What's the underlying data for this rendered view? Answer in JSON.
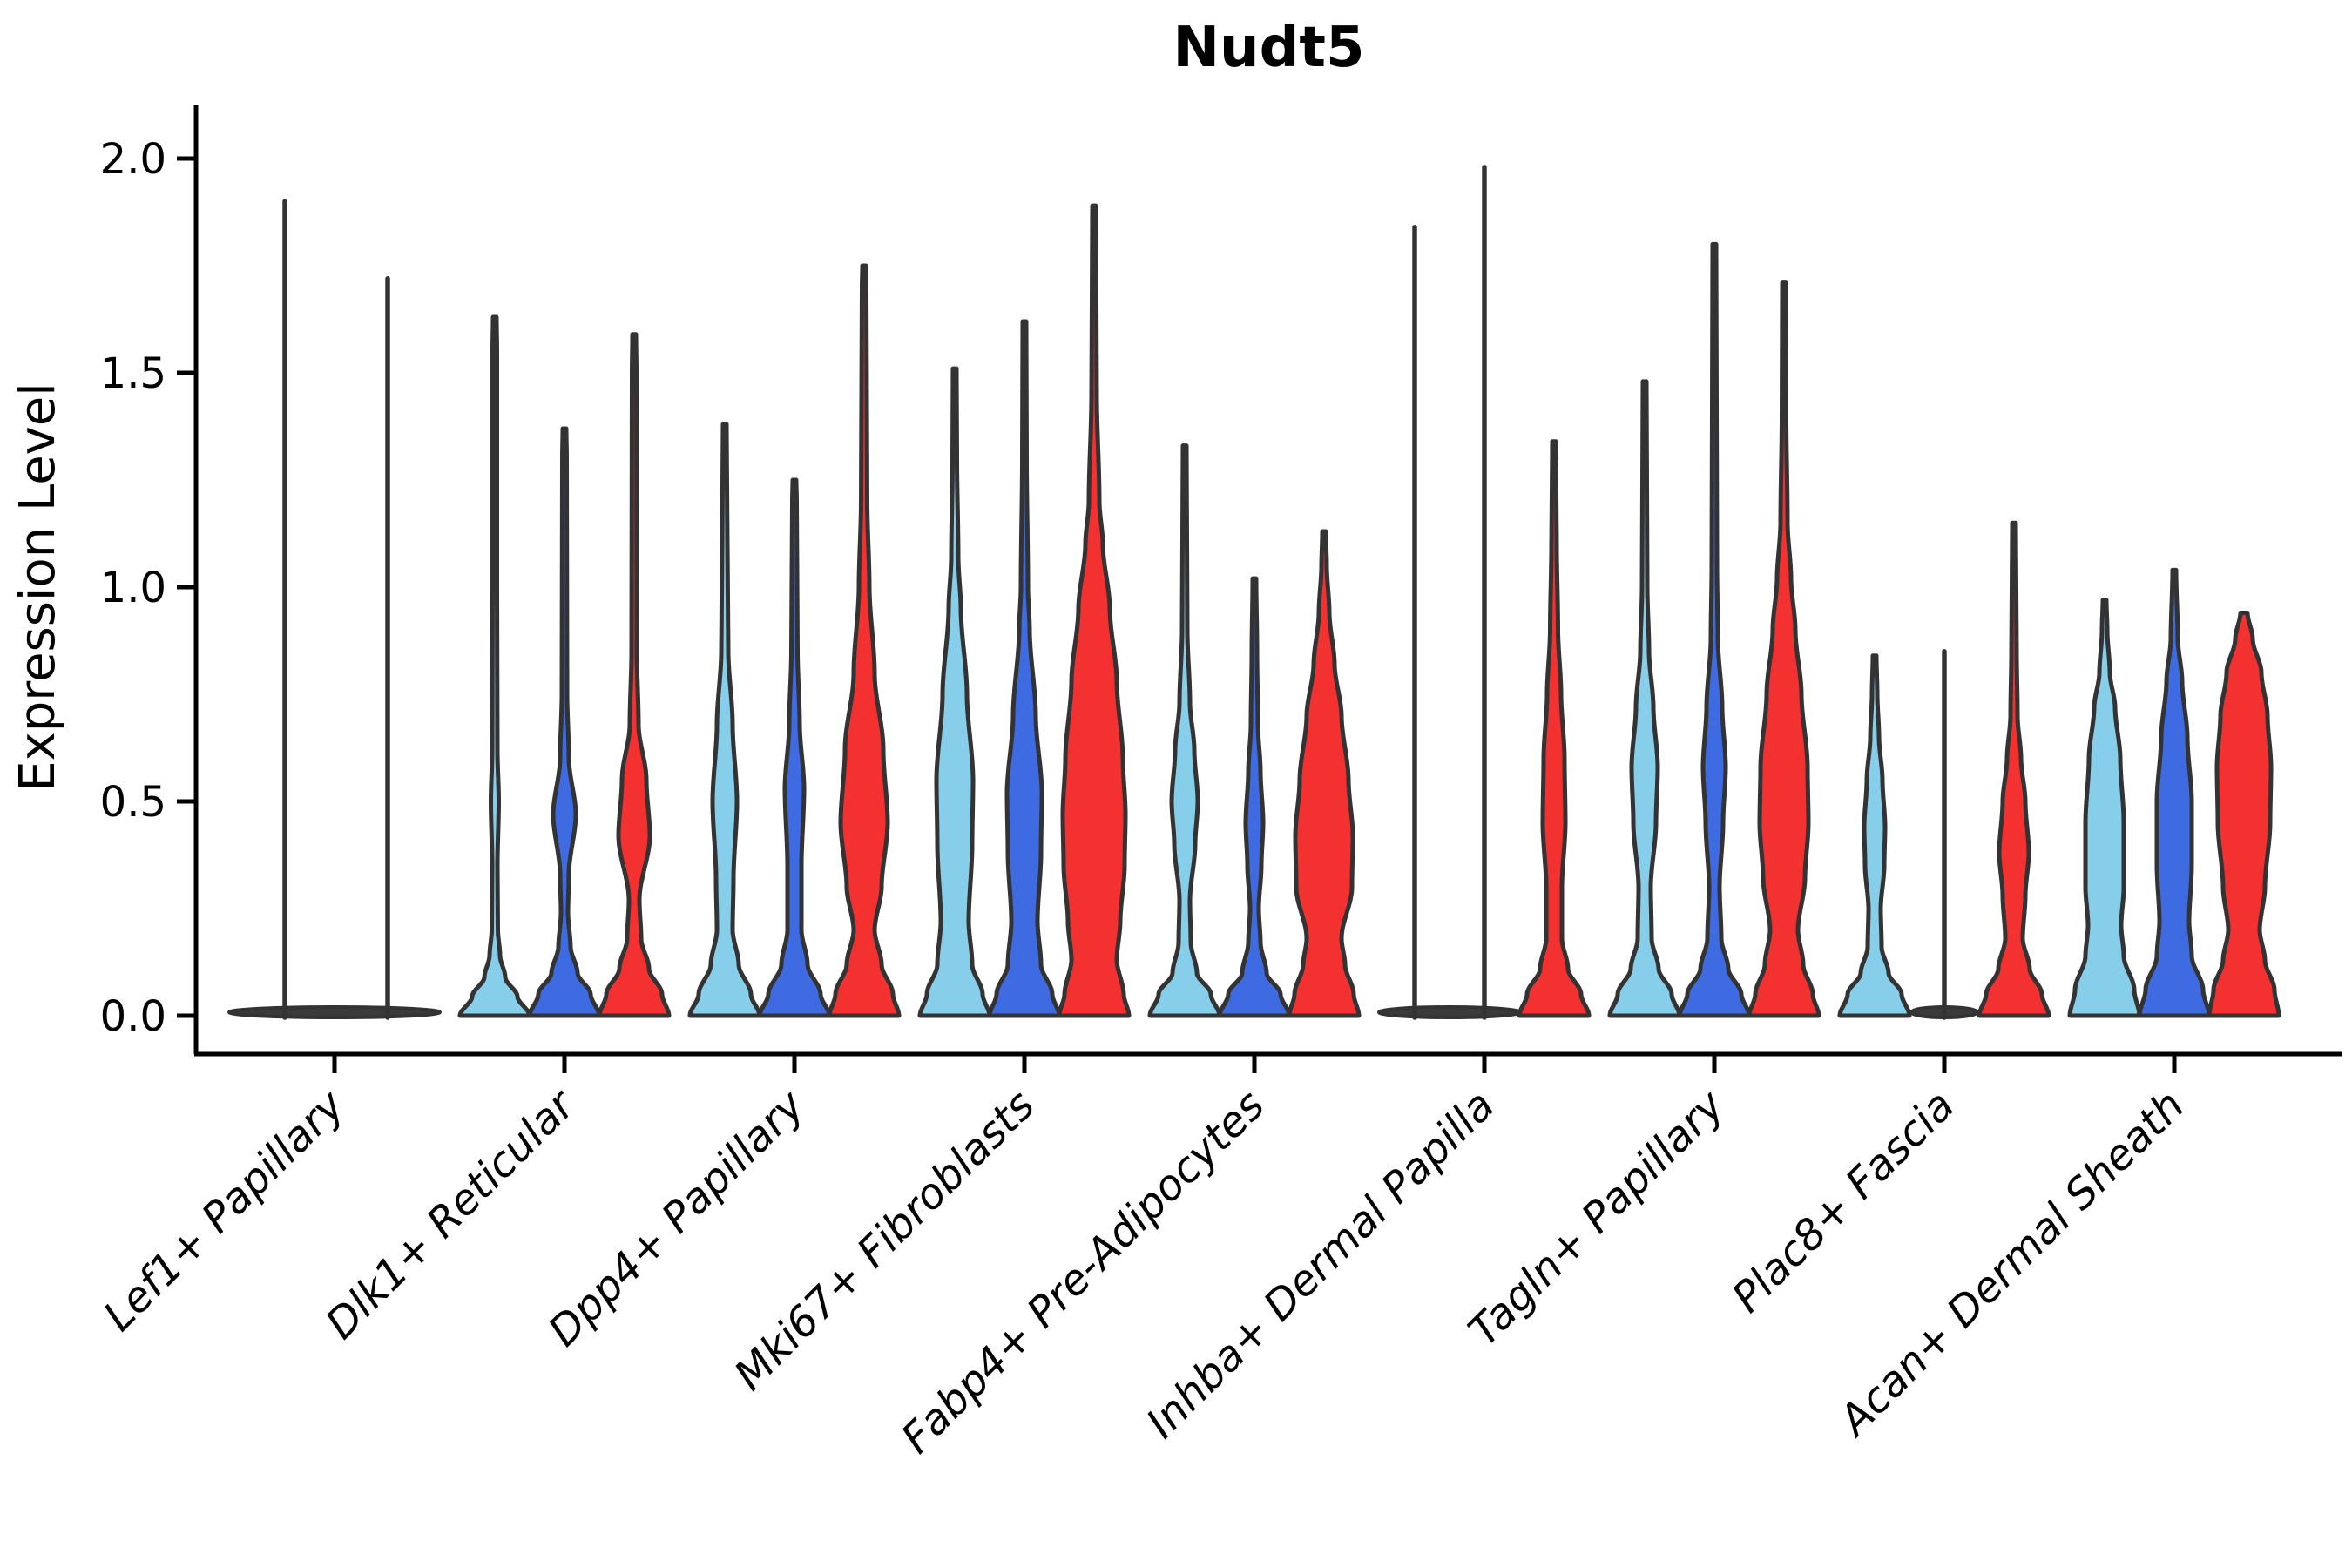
{
  "chart_data": {
    "type": "violin",
    "title": "Nudt5",
    "ylabel": "Expression Level",
    "xlabel": "",
    "ylim": [
      0.0,
      2.05
    ],
    "grid": false,
    "legend": "none",
    "yticks": [
      0.0,
      0.5,
      1.0,
      1.5,
      2.0
    ],
    "ytick_labels": [
      "0.0",
      "0.5",
      "1.0",
      "1.5",
      "2.0"
    ],
    "categories": [
      "Lef1+ Papillary",
      "Dlk1+ Reticular",
      "Dpp4+ Papillary",
      "Mki67+ Fibroblasts",
      "Fabp4+ Pre-Adipocytes",
      "Inhba+ Dermal Papilla",
      "Tagln+ Papillary",
      "Plac8+ Fascia",
      "Acan+ Dermal Sheath"
    ],
    "series_colors": {
      "lightblue": "#87CEEB",
      "blue": "#3E6BE1",
      "red": "#F43131"
    },
    "outline_color": "#333333",
    "axis_color": "#000000",
    "violins": [
      {
        "category": 0,
        "slot": 0,
        "color": "lightblue",
        "kind": "line",
        "top": 1.9,
        "dx": -57
      },
      {
        "category": 0,
        "slot": 1,
        "color": "blue",
        "kind": "line",
        "top": 1.72,
        "dx": 61
      },
      {
        "category": 0,
        "slot": 2,
        "color": "red",
        "kind": "flat",
        "top": 0.0
      },
      {
        "category": 1,
        "slot": 0,
        "color": "lightblue",
        "kind": "violin",
        "top": 1.63,
        "profile": [
          [
            0,
            40
          ],
          [
            0.045,
            26
          ],
          [
            0.09,
            12
          ],
          [
            0.14,
            6
          ],
          [
            0.2,
            3.5
          ],
          [
            0.35,
            3
          ],
          [
            0.5,
            4.5
          ],
          [
            0.62,
            3
          ],
          [
            1.0,
            2.5
          ],
          [
            1.55,
            2.5
          ],
          [
            1.63,
            2
          ]
        ]
      },
      {
        "category": 1,
        "slot": 1,
        "color": "blue",
        "kind": "violin",
        "top": 1.37,
        "profile": [
          [
            0,
            40
          ],
          [
            0.05,
            30
          ],
          [
            0.1,
            15
          ],
          [
            0.16,
            7
          ],
          [
            0.24,
            4
          ],
          [
            0.33,
            5
          ],
          [
            0.47,
            13
          ],
          [
            0.6,
            5
          ],
          [
            0.75,
            3
          ],
          [
            1.3,
            2.5
          ],
          [
            1.37,
            2
          ]
        ]
      },
      {
        "category": 1,
        "slot": 2,
        "color": "red",
        "kind": "violin",
        "top": 1.59,
        "profile": [
          [
            0,
            40
          ],
          [
            0.05,
            32
          ],
          [
            0.11,
            17
          ],
          [
            0.18,
            8
          ],
          [
            0.27,
            6
          ],
          [
            0.42,
            18
          ],
          [
            0.55,
            14
          ],
          [
            0.68,
            5
          ],
          [
            0.85,
            3
          ],
          [
            1.5,
            2.5
          ],
          [
            1.59,
            2
          ]
        ]
      },
      {
        "category": 2,
        "slot": 0,
        "color": "lightblue",
        "kind": "violin",
        "top": 1.38,
        "profile": [
          [
            0,
            40
          ],
          [
            0.05,
            30
          ],
          [
            0.12,
            16
          ],
          [
            0.2,
            9
          ],
          [
            0.32,
            10
          ],
          [
            0.5,
            14
          ],
          [
            0.68,
            9
          ],
          [
            0.85,
            4
          ],
          [
            1.1,
            3
          ],
          [
            1.38,
            2
          ]
        ]
      },
      {
        "category": 2,
        "slot": 1,
        "color": "blue",
        "kind": "violin",
        "top": 1.25,
        "profile": [
          [
            0,
            40
          ],
          [
            0.05,
            30
          ],
          [
            0.12,
            15
          ],
          [
            0.2,
            8
          ],
          [
            0.35,
            8
          ],
          [
            0.53,
            11
          ],
          [
            0.68,
            6
          ],
          [
            0.85,
            3.5
          ],
          [
            1.2,
            2.5
          ],
          [
            1.25,
            2
          ]
        ]
      },
      {
        "category": 2,
        "slot": 2,
        "color": "red",
        "kind": "violin",
        "top": 1.75,
        "profile": [
          [
            0,
            40
          ],
          [
            0.05,
            33
          ],
          [
            0.12,
            20
          ],
          [
            0.2,
            12
          ],
          [
            0.3,
            20
          ],
          [
            0.45,
            27
          ],
          [
            0.62,
            22
          ],
          [
            0.8,
            12
          ],
          [
            1.0,
            6
          ],
          [
            1.2,
            3.5
          ],
          [
            1.7,
            2.5
          ],
          [
            1.75,
            2
          ]
        ]
      },
      {
        "category": 3,
        "slot": 0,
        "color": "lightblue",
        "kind": "violin",
        "top": 1.51,
        "profile": [
          [
            0,
            40
          ],
          [
            0.05,
            32
          ],
          [
            0.12,
            20
          ],
          [
            0.22,
            16
          ],
          [
            0.4,
            20
          ],
          [
            0.55,
            21
          ],
          [
            0.75,
            14
          ],
          [
            0.95,
            7
          ],
          [
            1.07,
            4
          ],
          [
            1.3,
            2.5
          ],
          [
            1.51,
            2
          ]
        ]
      },
      {
        "category": 3,
        "slot": 1,
        "color": "blue",
        "kind": "violin",
        "top": 1.62,
        "profile": [
          [
            0,
            40
          ],
          [
            0.05,
            32
          ],
          [
            0.12,
            19
          ],
          [
            0.22,
            15
          ],
          [
            0.38,
            19
          ],
          [
            0.52,
            20
          ],
          [
            0.7,
            13
          ],
          [
            0.9,
            6
          ],
          [
            1.0,
            4
          ],
          [
            1.3,
            2.5
          ],
          [
            1.62,
            2
          ]
        ]
      },
      {
        "category": 3,
        "slot": 2,
        "color": "red",
        "kind": "violin",
        "top": 1.89,
        "profile": [
          [
            0,
            40
          ],
          [
            0.05,
            34
          ],
          [
            0.13,
            26
          ],
          [
            0.22,
            30
          ],
          [
            0.35,
            35
          ],
          [
            0.47,
            36
          ],
          [
            0.6,
            33
          ],
          [
            0.78,
            26
          ],
          [
            0.95,
            18
          ],
          [
            1.1,
            10
          ],
          [
            1.2,
            6
          ],
          [
            1.45,
            3
          ],
          [
            1.89,
            2
          ]
        ]
      },
      {
        "category": 4,
        "slot": 0,
        "color": "lightblue",
        "kind": "violin",
        "top": 1.33,
        "profile": [
          [
            0,
            40
          ],
          [
            0.05,
            30
          ],
          [
            0.1,
            14
          ],
          [
            0.17,
            7
          ],
          [
            0.27,
            6
          ],
          [
            0.4,
            12
          ],
          [
            0.5,
            15
          ],
          [
            0.62,
            11
          ],
          [
            0.73,
            6
          ],
          [
            0.9,
            3
          ],
          [
            1.33,
            2
          ]
        ]
      },
      {
        "category": 4,
        "slot": 1,
        "color": "blue",
        "kind": "violin",
        "top": 1.02,
        "profile": [
          [
            0,
            40
          ],
          [
            0.05,
            30
          ],
          [
            0.1,
            14
          ],
          [
            0.17,
            7
          ],
          [
            0.25,
            5
          ],
          [
            0.35,
            8
          ],
          [
            0.45,
            10
          ],
          [
            0.57,
            7
          ],
          [
            0.68,
            4
          ],
          [
            0.85,
            3
          ],
          [
            1.02,
            2
          ]
        ]
      },
      {
        "category": 4,
        "slot": 2,
        "color": "red",
        "kind": "violin",
        "top": 1.13,
        "profile": [
          [
            0,
            40
          ],
          [
            0.05,
            34
          ],
          [
            0.12,
            24
          ],
          [
            0.18,
            20
          ],
          [
            0.3,
            32
          ],
          [
            0.42,
            33
          ],
          [
            0.55,
            28
          ],
          [
            0.7,
            20
          ],
          [
            0.82,
            12
          ],
          [
            0.94,
            6
          ],
          [
            1.05,
            3
          ],
          [
            1.13,
            2
          ]
        ]
      },
      {
        "category": 5,
        "slot": 0,
        "color": "lightblue",
        "kind": "line",
        "top": 1.84,
        "dx": -80
      },
      {
        "category": 5,
        "slot": 1,
        "color": "blue",
        "kind": "line",
        "top": 1.98,
        "dx": 0
      },
      {
        "category": 5,
        "slot": 2,
        "color": "red",
        "kind": "violin",
        "top": 1.34,
        "profile": [
          [
            0,
            40
          ],
          [
            0.05,
            31
          ],
          [
            0.11,
            16
          ],
          [
            0.18,
            9
          ],
          [
            0.3,
            9
          ],
          [
            0.45,
            13
          ],
          [
            0.6,
            12
          ],
          [
            0.75,
            8
          ],
          [
            0.9,
            4.5
          ],
          [
            1.1,
            3
          ],
          [
            1.34,
            2
          ]
        ]
      },
      {
        "category": 6,
        "slot": 0,
        "color": "lightblue",
        "kind": "violin",
        "top": 1.48,
        "profile": [
          [
            0,
            40
          ],
          [
            0.05,
            31
          ],
          [
            0.11,
            16
          ],
          [
            0.18,
            8
          ],
          [
            0.3,
            7
          ],
          [
            0.45,
            13
          ],
          [
            0.58,
            15
          ],
          [
            0.72,
            10
          ],
          [
            0.85,
            5
          ],
          [
            1.0,
            3
          ],
          [
            1.48,
            2
          ]
        ]
      },
      {
        "category": 6,
        "slot": 1,
        "color": "blue",
        "kind": "violin",
        "top": 1.8,
        "profile": [
          [
            0,
            40
          ],
          [
            0.05,
            31
          ],
          [
            0.11,
            16
          ],
          [
            0.18,
            8
          ],
          [
            0.3,
            6
          ],
          [
            0.45,
            10
          ],
          [
            0.58,
            13
          ],
          [
            0.72,
            9
          ],
          [
            0.88,
            4
          ],
          [
            1.05,
            3
          ],
          [
            1.8,
            2
          ]
        ]
      },
      {
        "category": 6,
        "slot": 2,
        "color": "red",
        "kind": "violin",
        "top": 1.71,
        "profile": [
          [
            0,
            40
          ],
          [
            0.05,
            33
          ],
          [
            0.12,
            22
          ],
          [
            0.2,
            16
          ],
          [
            0.32,
            24
          ],
          [
            0.45,
            28
          ],
          [
            0.58,
            27
          ],
          [
            0.75,
            20
          ],
          [
            0.9,
            13
          ],
          [
            1.02,
            8
          ],
          [
            1.15,
            4
          ],
          [
            1.4,
            2.5
          ],
          [
            1.71,
            2
          ]
        ]
      },
      {
        "category": 7,
        "slot": 0,
        "color": "lightblue",
        "kind": "violin",
        "top": 0.84,
        "profile": [
          [
            0,
            40
          ],
          [
            0.05,
            31
          ],
          [
            0.1,
            16
          ],
          [
            0.16,
            8
          ],
          [
            0.25,
            7
          ],
          [
            0.35,
            11
          ],
          [
            0.44,
            12
          ],
          [
            0.55,
            9
          ],
          [
            0.65,
            5
          ],
          [
            0.75,
            3
          ],
          [
            0.84,
            2
          ]
        ]
      },
      {
        "category": 7,
        "slot": 1,
        "color": "blue",
        "kind": "line",
        "top": 0.85,
        "dx": 0
      },
      {
        "category": 7,
        "slot": 2,
        "color": "red",
        "kind": "violin",
        "top": 1.15,
        "profile": [
          [
            0,
            40
          ],
          [
            0.05,
            32
          ],
          [
            0.11,
            18
          ],
          [
            0.18,
            10
          ],
          [
            0.28,
            13
          ],
          [
            0.38,
            17
          ],
          [
            0.5,
            13
          ],
          [
            0.6,
            8
          ],
          [
            0.7,
            4
          ],
          [
            0.85,
            3
          ],
          [
            1.15,
            2
          ]
        ]
      },
      {
        "category": 8,
        "slot": 0,
        "color": "lightblue",
        "kind": "violin",
        "top": 0.97,
        "profile": [
          [
            0,
            40
          ],
          [
            0.06,
            34
          ],
          [
            0.14,
            22
          ],
          [
            0.21,
            19
          ],
          [
            0.3,
            22
          ],
          [
            0.45,
            22
          ],
          [
            0.6,
            18
          ],
          [
            0.72,
            12
          ],
          [
            0.8,
            6
          ],
          [
            0.9,
            3
          ],
          [
            0.97,
            2
          ]
        ]
      },
      {
        "category": 8,
        "slot": 1,
        "color": "blue",
        "kind": "violin",
        "top": 1.04,
        "profile": [
          [
            0,
            40
          ],
          [
            0.06,
            33
          ],
          [
            0.14,
            20
          ],
          [
            0.22,
            17
          ],
          [
            0.35,
            20
          ],
          [
            0.5,
            20
          ],
          [
            0.65,
            15
          ],
          [
            0.78,
            9
          ],
          [
            0.88,
            4
          ],
          [
            1.04,
            2
          ]
        ]
      },
      {
        "category": 8,
        "slot": 2,
        "color": "red",
        "kind": "violin",
        "top": 0.94,
        "profile": [
          [
            0,
            40
          ],
          [
            0.06,
            35
          ],
          [
            0.13,
            24
          ],
          [
            0.2,
            18
          ],
          [
            0.3,
            24
          ],
          [
            0.45,
            30
          ],
          [
            0.58,
            31
          ],
          [
            0.7,
            27
          ],
          [
            0.8,
            20
          ],
          [
            0.88,
            10
          ],
          [
            0.94,
            4
          ]
        ]
      }
    ],
    "flat_pancakes": [
      {
        "category": 0,
        "x0": -121,
        "x1": 121
      },
      {
        "category": 5,
        "x0": -121,
        "x1": 41
      },
      {
        "category": 7,
        "x0": -38,
        "x1": 38
      }
    ]
  }
}
